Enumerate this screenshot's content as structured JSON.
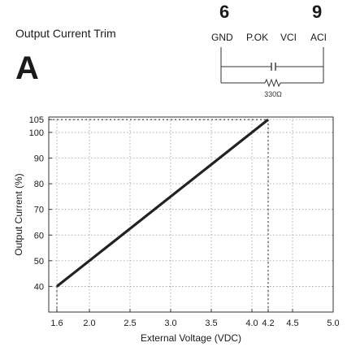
{
  "figure": {
    "title": "Output Current Trim",
    "panel_letter": "A"
  },
  "connector": {
    "pin_numbers": [
      "6",
      "9"
    ],
    "pin_labels": [
      "GND",
      "P.OK",
      "VCI",
      "ACI"
    ],
    "resistor_label": "330Ω"
  },
  "chart_data": {
    "type": "line",
    "title": "",
    "xlabel": "External Voltage (VDC)",
    "ylabel": "Output Current (%)",
    "xlim": [
      1.5,
      5.0
    ],
    "ylim": [
      30,
      106
    ],
    "x_ticks": [
      1.6,
      2.0,
      2.5,
      3.0,
      3.5,
      4.0,
      4.2,
      4.5,
      5.0
    ],
    "x_tick_labels": [
      "1.6",
      "2.0",
      "2.5",
      "3.0",
      "3.5",
      "4.0",
      "4.2",
      "4.5",
      "5.0"
    ],
    "y_ticks": [
      40,
      50,
      60,
      70,
      80,
      90,
      100,
      105
    ],
    "y_tick_labels": [
      "40",
      "50",
      "60",
      "70",
      "80",
      "90",
      "100",
      "105"
    ],
    "grid": true,
    "series": [
      {
        "values": [
          {
            "x": 1.6,
            "y": 40
          },
          {
            "x": 4.2,
            "y": 105
          }
        ]
      }
    ],
    "reference_lines": [
      {
        "from": {
          "x": 1.5,
          "y": 105
        },
        "to": {
          "x": 4.2,
          "y": 105
        }
      },
      {
        "from": {
          "x": 4.2,
          "y": 105
        },
        "to": {
          "x": 4.2,
          "y": 30
        }
      },
      {
        "from": {
          "x": 1.6,
          "y": 40
        },
        "to": {
          "x": 1.6,
          "y": 30
        }
      }
    ],
    "line_color": "#222222",
    "grid_color": "#9a9a9a"
  }
}
